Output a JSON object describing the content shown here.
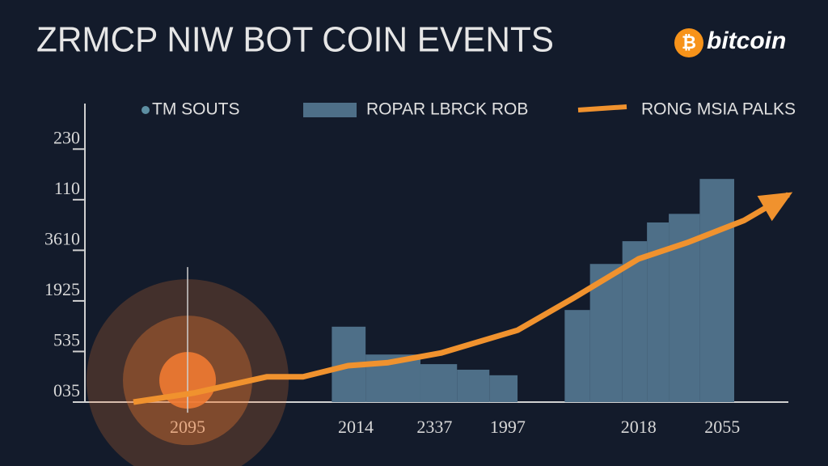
{
  "chart_data": {
    "type": "combo",
    "title": "ZRMCP NIW BOT COIN EVENTS",
    "logo_symbol": "₿",
    "logo_text": "bitcoin",
    "xlim": [
      0,
      100
    ],
    "ylim": [
      0,
      5.9
    ],
    "xticks": [
      {
        "value": 14.6,
        "label": "2095"
      },
      {
        "value": 38.5,
        "label": "2014"
      },
      {
        "value": 49.7,
        "label": "2337"
      },
      {
        "value": 60.1,
        "label": "1997"
      },
      {
        "value": 78.7,
        "label": "2018"
      },
      {
        "value": 90.6,
        "label": "2055"
      }
    ],
    "yticks": [
      {
        "value": 0,
        "label": "035"
      },
      {
        "value": 1,
        "label": "535"
      },
      {
        "value": 2,
        "label": "1925"
      },
      {
        "value": 3,
        "label": "3610"
      },
      {
        "value": 4,
        "label": "110"
      },
      {
        "value": 5,
        "label": "230"
      }
    ],
    "series": [
      {
        "name": "TM SOUTS",
        "type": "glow",
        "color": "#f07a32",
        "x": [
          14.6
        ],
        "values": [
          0.43
        ]
      },
      {
        "name": "ROPAR LBRCK ROB",
        "type": "bar",
        "color": "#4e6f88",
        "bins": [
          35.1,
          39.9,
          47.7,
          52.9,
          57.5,
          61.5,
          68.2,
          71.8,
          76.4,
          79.9,
          83.0,
          87.4,
          92.3
        ],
        "values": [
          1.49,
          0.94,
          0.75,
          0.64,
          0.53,
          null,
          1.82,
          2.73,
          3.18,
          3.55,
          3.72,
          4.41
        ]
      },
      {
        "name": "RONG MSIA PALKS",
        "type": "line",
        "color": "#f0922e",
        "x": [
          6.9,
          15.5,
          25.9,
          31.0,
          37.4,
          43.1,
          50.6,
          61.5,
          69.5,
          78.7,
          85.6,
          93.7,
          100
        ],
        "values": [
          0,
          0.18,
          0.5,
          0.5,
          0.72,
          0.78,
          0.97,
          1.42,
          2.06,
          2.83,
          3.15,
          3.59,
          4.1
        ]
      }
    ]
  }
}
